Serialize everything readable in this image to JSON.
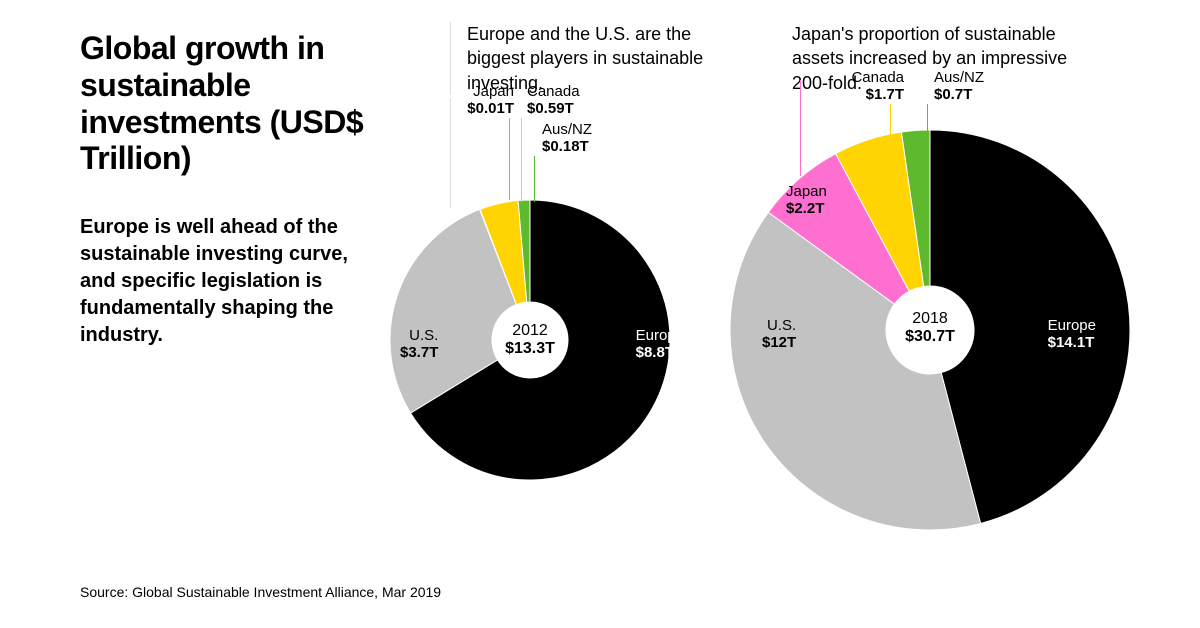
{
  "title": "Global growth in sustainable investments (USD$ Trillion)",
  "subtitle": "Europe is well ahead of the sustainable investing curve, and specific legislation is fundamentally shaping the industry.",
  "source": "Source: Global Sustainable Investment Alliance, Mar 2019",
  "annotation_left": "Europe and the U.S. are the biggest players in sustainable investing.",
  "annotation_right": "Japan's proportion of sustainable assets increased by an impressive 200-fold.",
  "colors": {
    "europe": "#000000",
    "us": "#c2c2c2",
    "japan": "#ff6fcf",
    "canada": "#ffd400",
    "ausnz": "#5fb92e",
    "background": "#ffffff",
    "leader_grey": "#bbbbbb"
  },
  "chart_2012": {
    "type": "donut",
    "year": "2012",
    "total": "$13.3T",
    "outer_radius": 140,
    "inner_radius": 38,
    "start_angle_deg": 90,
    "slices": [
      {
        "key": "europe",
        "label": "Europe",
        "value_label": "$8.8T",
        "value": 8.8,
        "color": "#000000",
        "label_color": "#000"
      },
      {
        "key": "us",
        "label": "U.S.",
        "value_label": "$3.7T",
        "value": 3.7,
        "color": "#c2c2c2",
        "label_color": "#000"
      },
      {
        "key": "japan",
        "label": "Japan",
        "value_label": "$0.01T",
        "value": 0.01,
        "color": "#ff6fcf",
        "label_color": "#000"
      },
      {
        "key": "canada",
        "label": "Canada",
        "value_label": "$0.59T",
        "value": 0.59,
        "color": "#ffd400",
        "label_color": "#000"
      },
      {
        "key": "ausnz",
        "label": "Aus/NZ",
        "value_label": "$0.18T",
        "value": 0.18,
        "color": "#5fb92e",
        "label_color": "#000"
      }
    ]
  },
  "chart_2018": {
    "type": "donut",
    "year": "2018",
    "total": "$30.7T",
    "outer_radius": 200,
    "inner_radius": 44,
    "start_angle_deg": 90,
    "slices": [
      {
        "key": "europe",
        "label": "Europe",
        "value_label": "$14.1T",
        "value": 14.1,
        "color": "#000000",
        "label_color": "#fff"
      },
      {
        "key": "us",
        "label": "U.S.",
        "value_label": "$12T",
        "value": 12.0,
        "color": "#c2c2c2",
        "label_color": "#000"
      },
      {
        "key": "japan",
        "label": "Japan",
        "value_label": "$2.2T",
        "value": 2.2,
        "color": "#ff6fcf",
        "label_color": "#000"
      },
      {
        "key": "canada",
        "label": "Canada",
        "value_label": "$1.7T",
        "value": 1.7,
        "color": "#ffd400",
        "label_color": "#000"
      },
      {
        "key": "ausnz",
        "label": "Aus/NZ",
        "value_label": "$0.7T",
        "value": 0.7,
        "color": "#5fb92e",
        "label_color": "#000"
      }
    ]
  }
}
